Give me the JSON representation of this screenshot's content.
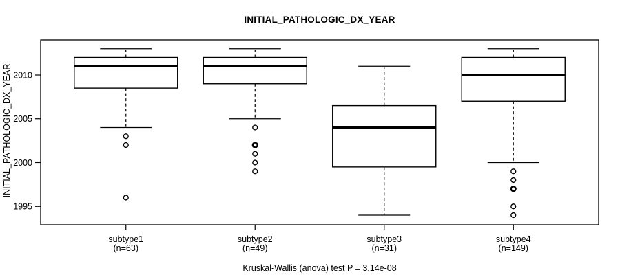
{
  "chart_data": {
    "type": "boxplot",
    "title": "INITIAL_PATHOLOGIC_DX_YEAR",
    "ylabel": "INITIAL_PATHOLOGIC_DX_YEAR",
    "footer": "Kruskal-Wallis (anova) test P = 3.14e-08",
    "ylim": [
      1992.9,
      2014.0
    ],
    "xlim": [
      0.34,
      4.66
    ],
    "yticks": [
      1995,
      2000,
      2005,
      2010
    ],
    "box_half_width": 0.4,
    "cap_half_width": 0.2,
    "grid": false,
    "legend": "none",
    "groups": [
      {
        "label": "subtype1",
        "n_label": "(n=63)",
        "n": 63,
        "position": 1,
        "whisker_low": 2004,
        "q1": 2008.5,
        "median": 2011,
        "q3": 2012,
        "whisker_high": 2013,
        "outliers": [
          2003,
          2002,
          1996
        ],
        "bold_outliers": []
      },
      {
        "label": "subtype2",
        "n_label": "(n=49)",
        "n": 49,
        "position": 2,
        "whisker_low": 2005,
        "q1": 2009,
        "median": 2011,
        "q3": 2012,
        "whisker_high": 2013,
        "outliers": [
          2004,
          2002,
          2001,
          2000,
          1999
        ],
        "bold_outliers": [
          2002
        ]
      },
      {
        "label": "subtype3",
        "n_label": "(n=31)",
        "n": 31,
        "position": 3,
        "whisker_low": 1994,
        "q1": 1999.5,
        "median": 2004,
        "q3": 2006.5,
        "whisker_high": 2011,
        "outliers": [],
        "bold_outliers": []
      },
      {
        "label": "subtype4",
        "n_label": "(n=149)",
        "n": 149,
        "position": 4,
        "whisker_low": 2000,
        "q1": 2007,
        "median": 2010,
        "q3": 2012,
        "whisker_high": 2013,
        "outliers": [
          1999,
          1998,
          1997,
          1995,
          1994
        ],
        "bold_outliers": [
          1997
        ]
      }
    ],
    "colors": {
      "foreground": "#000000",
      "box_fill": "#ffffff",
      "background": "#ffffff"
    }
  }
}
